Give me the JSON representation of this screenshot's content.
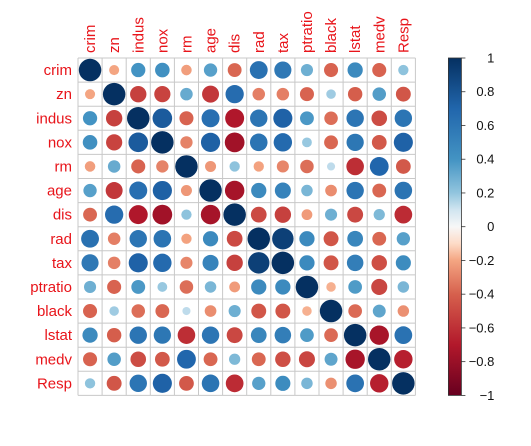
{
  "chart_data": {
    "type": "heatmap",
    "style": "correlation circles (size and color encode correlation)",
    "variables": [
      "crim",
      "zn",
      "indus",
      "nox",
      "rm",
      "age",
      "dis",
      "rad",
      "tax",
      "ptratio",
      "black",
      "lstat",
      "medv",
      "Resp"
    ],
    "matrix": [
      [
        1.0,
        -0.2,
        0.4,
        0.42,
        -0.22,
        0.35,
        -0.38,
        0.63,
        0.58,
        0.29,
        -0.39,
        0.46,
        -0.39,
        0.21
      ],
      [
        -0.2,
        1.0,
        -0.53,
        -0.52,
        0.31,
        -0.57,
        0.66,
        -0.31,
        -0.31,
        -0.39,
        0.18,
        -0.41,
        0.36,
        -0.44
      ],
      [
        0.4,
        -0.53,
        1.0,
        0.76,
        -0.39,
        0.64,
        -0.71,
        0.6,
        0.72,
        0.38,
        -0.36,
        0.6,
        -0.48,
        0.6
      ],
      [
        0.42,
        -0.52,
        0.76,
        1.0,
        -0.3,
        0.73,
        -0.77,
        0.61,
        0.67,
        0.19,
        -0.38,
        0.59,
        -0.43,
        0.72
      ],
      [
        -0.22,
        0.31,
        -0.39,
        -0.3,
        1.0,
        -0.24,
        0.21,
        -0.21,
        -0.29,
        -0.36,
        0.13,
        -0.61,
        0.7,
        -0.43
      ],
      [
        0.35,
        -0.57,
        0.64,
        0.73,
        -0.24,
        1.0,
        -0.75,
        0.46,
        0.51,
        0.26,
        -0.27,
        0.6,
        -0.38,
        0.61
      ],
      [
        -0.38,
        0.66,
        -0.71,
        -0.77,
        0.21,
        -0.75,
        1.0,
        -0.49,
        -0.53,
        -0.23,
        0.29,
        -0.5,
        0.25,
        -0.62
      ],
      [
        0.63,
        -0.31,
        0.6,
        0.61,
        -0.21,
        0.46,
        -0.49,
        1.0,
        0.91,
        0.46,
        -0.44,
        0.49,
        -0.38,
        0.35
      ],
      [
        0.58,
        -0.31,
        0.72,
        0.67,
        -0.29,
        0.51,
        -0.53,
        0.91,
        1.0,
        0.46,
        -0.44,
        0.54,
        -0.47,
        0.45
      ],
      [
        0.29,
        -0.39,
        0.38,
        0.19,
        -0.36,
        0.26,
        -0.23,
        0.46,
        0.46,
        1.0,
        -0.18,
        0.37,
        -0.51,
        0.26
      ],
      [
        -0.39,
        0.18,
        -0.36,
        -0.38,
        0.13,
        -0.27,
        0.29,
        -0.44,
        -0.44,
        -0.18,
        1.0,
        -0.37,
        0.33,
        -0.26
      ],
      [
        0.46,
        -0.41,
        0.6,
        0.59,
        -0.61,
        0.6,
        -0.5,
        0.49,
        0.54,
        0.37,
        -0.37,
        1.0,
        -0.74,
        0.62
      ],
      [
        -0.39,
        0.36,
        -0.48,
        -0.43,
        0.7,
        -0.38,
        0.25,
        -0.38,
        -0.47,
        -0.51,
        0.33,
        -0.74,
        1.0,
        -0.67
      ],
      [
        0.21,
        -0.44,
        0.6,
        0.72,
        -0.43,
        0.61,
        -0.62,
        0.35,
        0.45,
        0.26,
        -0.26,
        0.62,
        -0.67,
        1.0
      ]
    ],
    "colorbar": {
      "range": [
        -1,
        1
      ],
      "ticks": [
        "1",
        "0.8",
        "0.6",
        "0.4",
        "0.2",
        "0",
        "−0.2",
        "−0.4",
        "−0.6",
        "−0.8",
        "−1"
      ],
      "colors": {
        "neg1": "#67001f",
        "neg07": "#b2182b",
        "neg04": "#d6604d",
        "neg02": "#f4a582",
        "neg01": "#fddbc7",
        "zero": "#f7f7f7",
        "pos01": "#d1e5f0",
        "pos02": "#92c5de",
        "pos04": "#4393c3",
        "pos07": "#2166ac",
        "pos1": "#053061"
      }
    },
    "label_color": "#e8141a",
    "grid_color": "#c8c8c8"
  }
}
